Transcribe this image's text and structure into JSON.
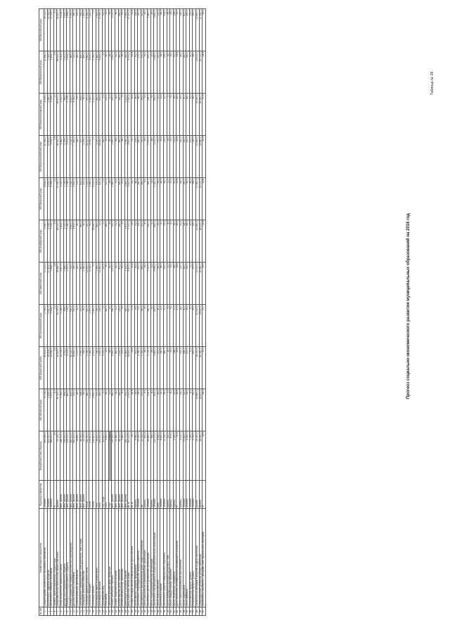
{
  "document": {
    "title": "Прогноз социально-экономического развития муниципальных образований на 2016 год",
    "corner_label": "Таблица № 29"
  },
  "table": {
    "headers": [
      "№ п/п",
      "Наименование показателя",
      "Единица измерения",
      "Республика Саха (Якутия)",
      "МО Абыйский улус",
      "МО Алданский район",
      "МО Аллаиховский улус",
      "МО Амгинский улус",
      "МО Анабарский улус",
      "МО Булунский улус",
      "МО Верхневилюйский улус",
      "МО Верхнеколымский улус",
      "МО Верхоянский улус",
      "МО Вилюйский улус"
    ],
    "rows": [
      {
        "no": "1",
        "name": "Среднегодовая численность постоянного населения",
        "unit": "человек",
        "v": [
          "963 965,0",
          "4 074,0",
          "40 813,0",
          "2 795,0",
          "17 211,0",
          "3 540,0",
          "8 432,0",
          "21 341,0",
          "4 106,0",
          "11 442,0",
          "25 113,0"
        ]
      },
      {
        "no": "2",
        "name": "Численность трудовых ресурсов",
        "unit": "человек",
        "v": [
          "612 300,0",
          "2 453,0",
          "26 504,0",
          "1 697,0",
          "10 402,0",
          "2 096,0",
          "5 470,0",
          "12 803,0",
          "2 580,0",
          "7 085,0",
          "15 052,0"
        ]
      },
      {
        "no": "3",
        "name": "Численность занятых в экономике",
        "unit": "человек",
        "v": [
          "466 400,0",
          "1 870,0",
          "22 541,0",
          "1 418,0",
          "7 856,0",
          "1 722,0",
          "4 596,0",
          "9 530,0",
          "2 116,0",
          "5 452,0",
          "11 022,0"
        ]
      },
      {
        "no": "4",
        "name": "Уровень зарегистрированной безработицы",
        "unit": "%",
        "v": [
          "1,5",
          "2,0",
          "1,3",
          "1,1",
          "1,8",
          "0,9",
          "1,2",
          "2,4",
          "1,0",
          "1,9",
          "2,1"
        ]
      },
      {
        "no": "5",
        "name": "Среднемесячная начисленная заработная плата",
        "unit": "рублей",
        "v": [
          "51 220,0",
          "47 300,0",
          "52 410,0",
          "61 050,0",
          "36 880,0",
          "68 310,0",
          "57 240,0",
          "38 150,0",
          "59 470,0",
          "46 810,0",
          "39 420,0"
        ]
      },
      {
        "no": "6",
        "name": "Фонд начисленной заработной платы",
        "unit": "млн. рублей",
        "v": [
          "286 700,0",
          "1 061,0",
          "14 176,0",
          "1 039,0",
          "3 477,0",
          "1 412,0",
          "3 157,0",
          "4 363,0",
          "1 510,0",
          "3 063,0",
          "5 214,0"
        ]
      },
      {
        "no": "7",
        "name": "Доходы консолидированного бюджета",
        "unit": "млн. рублей",
        "v": [
          "199 400,0",
          "854,0",
          "3 912,0",
          "764,0",
          "1 866,0",
          "1 021,0",
          "1 735,0",
          "2 154,0",
          "982,0",
          "1 601,0",
          "2 620,0"
        ]
      },
      {
        "no": "8",
        "name": "Расходы консолидированного бюджета",
        "unit": "млн. рублей",
        "v": [
          "205 100,0",
          "867,0",
          "4 005,0",
          "779,0",
          "1 902,0",
          "1 040,0",
          "1 768,0",
          "2 201,0",
          "1 004,0",
          "1 633,0",
          "2 684,0"
        ]
      },
      {
        "no": "9",
        "name": "Объем отгруженных товаров собственного производства",
        "unit": "млн. рублей",
        "v": [
          "890 500,0",
          "410,0",
          "40 120,0",
          "630,0",
          "720,0",
          "8 900,0",
          "2 140,0",
          "1 230,0",
          "6 810,0",
          "980,0",
          "1 520,0"
        ]
      },
      {
        "no": "10",
        "name": "Добыча полезных ископаемых",
        "unit": "млн. рублей",
        "v": [
          "620 300,0",
          "120,0",
          "36 850,0",
          "510,0",
          "140,0",
          "8 410,0",
          "1 620,0",
          "420,0",
          "6 350,0",
          "310,0",
          "640,0"
        ]
      },
      {
        "no": "11",
        "name": "Обрабатывающие производства",
        "unit": "млн. рублей",
        "v": [
          "28 450,0",
          "45,0",
          "1 210,0",
          "20,0",
          "160,0",
          "30,0",
          "110,0",
          "240,0",
          "25,0",
          "180,0",
          "230,0"
        ]
      },
      {
        "no": "12",
        "name": "Производство и распределение электроэнергии, газа и воды",
        "unit": "млн. рублей",
        "v": [
          "48 760,0",
          "245,0",
          "2 060,0",
          "100,0",
          "420,0",
          "460,0",
          "410,0",
          "570,0",
          "435,0",
          "490,0",
          "650,0"
        ]
      },
      {
        "no": "13",
        "name": "Продукция сельского хозяйства",
        "unit": "млн. рублей",
        "v": [
          "23 150,0",
          "95,0",
          "540,0",
          "60,0",
          "1 380,0",
          "40,0",
          "210,0",
          "1 760,0",
          "80,0",
          "690,0",
          "1 420,0"
        ]
      },
      {
        "no": "14",
        "name": "Поголовье крупного рогатого скота",
        "unit": "голов",
        "v": [
          "182 300,0",
          "980,0",
          "2 140,0",
          "410,0",
          "12 630,0",
          "120,0",
          "1 310,0",
          "14 210,0",
          "870,0",
          "5 960,0",
          "11 840,0"
        ]
      },
      {
        "no": "15",
        "name": "Поголовье лошадей",
        "unit": "голов",
        "v": [
          "176 200,0",
          "3 120,0",
          "1 360,0",
          "1 870,0",
          "6 140,0",
          "90,0",
          "2 980,0",
          "8 760,0",
          "2 340,0",
          "9 410,0",
          "7 630,0"
        ]
      },
      {
        "no": "16",
        "name": "Поголовье оленей",
        "unit": "голов",
        "v": [
          "155 400,0",
          "1 850,0",
          "2 910,0",
          "7 420,0",
          "0,0",
          "24 630,0",
          "9 210,0",
          "0,0",
          "3 120,0",
          "2 760,0",
          "0,0"
        ]
      },
      {
        "no": "17",
        "name": "Производство мяса (в живом весе)",
        "unit": "тонн",
        "v": [
          "34 600,0",
          "210,0",
          "240,0",
          "190,0",
          "1 960,0",
          "420,0",
          "510,0",
          "2 310,0",
          "260,0",
          "1 480,0",
          "1 820,0"
        ]
      },
      {
        "no": "18",
        "name": "Производство молока",
        "unit": "тонн",
        "v": [
          "161 800,0",
          "540,0",
          "1 820,0",
          "210,0",
          "12 430,0",
          "10,0",
          "420,0",
          "14 630,0",
          "610,0",
          "4 820,0",
          "10 260,0"
        ]
      },
      {
        "no": "19",
        "name": "Производство яиц",
        "unit": "тыс. штук",
        "v": [
          "119 400,0",
          "0,0",
          "2 310,0",
          "0,0",
          "120,0",
          "0,0",
          "0,0",
          "260,0",
          "0,0",
          "0,0",
          "310,0"
        ]
      },
      {
        "no": "20",
        "name": "Улов рыбы",
        "unit": "тонн",
        "v": [
          "3 850,0",
          "95,0",
          "12,0",
          "420,0",
          "8,0",
          "380,0",
          "510,0",
          "15,0",
          "210,0",
          "40,0",
          "35,0"
        ]
      },
      {
        "no": "21",
        "name": "Заготовка дикорастущей продукции",
        "unit": "тонн",
        "v": [
          "1 240,0",
          "12,0",
          "85,0",
          "6,0",
          "40,0",
          "4,0",
          "18,0",
          "62,0",
          "10,0",
          "28,0",
          "54,0"
        ]
      },
      {
        "no": "22",
        "name": "Оборот розничной торговли",
        "unit": "млн. рублей",
        "v": [
          "187 600,0",
          "980,0",
          "8 450,0",
          "640,0",
          "2 470,0",
          "720,0",
          "1 860,0",
          "2 890,0",
          "910,0",
          "1 630,0",
          "3 210,0"
        ]
      },
      {
        "no": "23",
        "name": "Оборот общественного питания",
        "unit": "млн. рублей",
        "v": [
          "11 480,0",
          "14,0",
          "460,0",
          "10,0",
          "62,0",
          "21,0",
          "75,0",
          "84,0",
          "18,0",
          "41,0",
          "96,0"
        ]
      },
      {
        "no": "24",
        "name": "Объем платных услуг населению",
        "unit": "млн. рублей",
        "v": [
          "56 210,0",
          "165,0",
          "2 310,0",
          "120,0",
          "470,0",
          "180,0",
          "390,0",
          "560,0",
          "150,0",
          "340,0",
          "690,0"
        ]
      },
      {
        "no": "25",
        "name": "Объем бытовых услуг населению",
        "unit": "млн. рублей",
        "v": [
          "5 380,0",
          "6,0",
          "210,0",
          "4,0",
          "41,0",
          "5,0",
          "22,0",
          "48,0",
          "7,0",
          "26,0",
          "61,0"
        ]
      },
      {
        "no": "26",
        "name": "Инвестиции в основной капитал",
        "unit": "млн. рублей",
        "v": [
          "242 700,0",
          "310,0",
          "21 460,0",
          "260,0",
          "1 120,0",
          "3 470,0",
          "2 860,0",
          "1 540,0",
          "2 210,0",
          "780,0",
          "1 960,0"
        ]
      },
      {
        "no": "27",
        "name": "Ввод в действие жилых домов",
        "unit": "кв. м",
        "v": [
          "410 200,0",
          "1 200,0",
          "14 600,0",
          "900,0",
          "8 400,0",
          "1 100,0",
          "3 200,0",
          "9 600,0",
          "1 300,0",
          "4 700,0",
          "10 300,0"
        ]
      },
      {
        "no": "28",
        "name": "Общая площадь жилых помещений на одного жителя",
        "unit": "кв. м",
        "v": [
          "22,1",
          "28,4",
          "24,6",
          "27,9",
          "22,8",
          "19,3",
          "23,7",
          "23,1",
          "26,2",
          "25,8",
          "22,4"
        ]
      },
      {
        "no": "29",
        "name": "Число малых и средних предприятий",
        "unit": "единиц",
        "v": [
          "6 940,0",
          "24,0",
          "410,0",
          "19,0",
          "92,0",
          "21,0",
          "48,0",
          "104,0",
          "26,0",
          "61,0",
          "126,0"
        ]
      },
      {
        "no": "30",
        "name": "Численность индивидуальных предпринимателей",
        "unit": "человек",
        "v": [
          "23 180,0",
          "94,0",
          "1 080,0",
          "71,0",
          "510,0",
          "62,0",
          "180,0",
          "640,0",
          "98,0",
          "370,0",
          "780,0"
        ]
      },
      {
        "no": "31",
        "name": "Протяженность автомобильных дорог общего пользования",
        "unit": "км",
        "v": [
          "27 530,0",
          "210,0",
          "1 160,0",
          "160,0",
          "640,0",
          "120,0",
          "380,0",
          "720,0",
          "190,0",
          "570,0",
          "810,0"
        ]
      },
      {
        "no": "32",
        "name": "Число дошкольных образовательных организаций",
        "unit": "единиц",
        "v": [
          "620,0",
          "5,0",
          "28,0",
          "4,0",
          "19,0",
          "4,0",
          "8,0",
          "24,0",
          "6,0",
          "15,0",
          "26,0"
        ]
      },
      {
        "no": "33",
        "name": "Численность детей в дошкольных организациях",
        "unit": "человек",
        "v": [
          "65 460,0",
          "214,0",
          "2 730,0",
          "160,0",
          "1 210,0",
          "230,0",
          "560,0",
          "1 510,0",
          "240,0",
          "810,0",
          "1 680,0"
        ]
      },
      {
        "no": "34",
        "name": "Число общеобразовательных организаций",
        "unit": "единиц",
        "v": [
          "640,0",
          "8,0",
          "26,0",
          "6,0",
          "21,0",
          "5,0",
          "13,0",
          "26,0",
          "9,0",
          "20,0",
          "29,0"
        ]
      },
      {
        "no": "35",
        "name": "Численность обучающихся в общеобразовательных организациях",
        "unit": "человек",
        "v": [
          "132 100,0",
          "602,0",
          "5 480,0",
          "410,0",
          "2 690,0",
          "620,0",
          "1 320,0",
          "3 310,0",
          "620,0",
          "1 840,0",
          "3 820,0"
        ]
      },
      {
        "no": "36",
        "name": "Число больничных коек",
        "unit": "коек",
        "v": [
          "8 940,0",
          "45,0",
          "410,0",
          "40,0",
          "140,0",
          "35,0",
          "95,0",
          "170,0",
          "50,0",
          "120,0",
          "210,0"
        ]
      },
      {
        "no": "37",
        "name": "Численность врачей",
        "unit": "человек",
        "v": [
          "4 820,0",
          "12,0",
          "160,0",
          "10,0",
          "46,0",
          "9,0",
          "28,0",
          "55,0",
          "13,0",
          "34,0",
          "68,0"
        ]
      },
      {
        "no": "38",
        "name": "Численность среднего медицинского персонала",
        "unit": "человек",
        "v": [
          "11 230,0",
          "38,0",
          "480,0",
          "31,0",
          "152,0",
          "29,0",
          "84,0",
          "176,0",
          "41,0",
          "108,0",
          "214,0"
        ]
      },
      {
        "no": "39",
        "name": "Число учреждений культурно-досугового типа",
        "unit": "единиц",
        "v": [
          "520,0",
          "7,0",
          "18,0",
          "5,0",
          "20,0",
          "4,0",
          "11,0",
          "24,0",
          "7,0",
          "18,0",
          "26,0"
        ]
      },
      {
        "no": "40",
        "name": "Число общедоступных библиотек",
        "unit": "единиц",
        "v": [
          "470,0",
          "6,0",
          "15,0",
          "5,0",
          "19,0",
          "4,0",
          "10,0",
          "22,0",
          "6,0",
          "16,0",
          "24,0"
        ]
      },
      {
        "no": "41",
        "name": "Число спортивных сооружений",
        "unit": "единиц",
        "v": [
          "3 160,0",
          "22,0",
          "148,0",
          "17,0",
          "86,0",
          "16,0",
          "41,0",
          "102,0",
          "24,0",
          "67,0",
          "118,0"
        ]
      },
      {
        "no": "42",
        "name": "Доля населения, систематически занимающегося спортом",
        "unit": "%",
        "v": [
          "30,2",
          "28,6",
          "29,4",
          "27,1",
          "34,8",
          "26,5",
          "29,9",
          "35,6",
          "28,3",
          "32,4",
          "33,7"
        ]
      },
      {
        "no": "43",
        "name": "Число зарегистрированных преступлений",
        "unit": "единиц",
        "v": [
          "9 210,0",
          "24,0",
          "610,0",
          "18,0",
          "110,0",
          "21,0",
          "64,0",
          "150,0",
          "29,0",
          "86,0",
          "190,0"
        ]
      },
      {
        "no": "44",
        "name": "Число родившихся",
        "unit": "человек",
        "v": [
          "15 420,0",
          "62,0",
          "540,0",
          "41,0",
          "260,0",
          "68,0",
          "140,0",
          "330,0",
          "60,0",
          "180,0",
          "400,0"
        ]
      },
      {
        "no": "45",
        "name": "Число умерших",
        "unit": "человек",
        "v": [
          "8 160,0",
          "54,0",
          "470,0",
          "35,0",
          "190,0",
          "36,0",
          "95,0",
          "230,0",
          "48,0",
          "140,0",
          "290,0"
        ]
      },
      {
        "no": "46",
        "name": "Естественный прирост (убыль)",
        "unit": "человек",
        "v": [
          "7 260,0",
          "8,0",
          "70,0",
          "6,0",
          "70,0",
          "32,0",
          "45,0",
          "100,0",
          "12,0",
          "40,0",
          "110,0"
        ]
      },
      {
        "no": "47",
        "name": "Миграционный прирост (убыль)",
        "unit": "человек",
        "v": [
          "-5 130,0",
          "-41,0",
          "-620,0",
          "-35,0",
          "-110,0",
          "-29,0",
          "-64,0",
          "-140,0",
          "-38,0",
          "-96,0",
          "-160,0"
        ]
      },
      {
        "no": "48",
        "name": "Прожиточный минимум в среднем на душу населения",
        "unit": "рублей",
        "v": [
          "14 180,0",
          "18 460,0",
          "14 090,0",
          "20 310,0",
          "13 210,0",
          "21 540,0",
          "17 980,0",
          "13 380,0",
          "19 240,0",
          "15 610,0",
          "13 490,0"
        ]
      },
      {
        "no": "49",
        "name": "Среднедушевые денежные доходы населения",
        "unit": "рублей",
        "v": [
          "38 260,0",
          "29 410,0",
          "40 180,0",
          "33 620,0",
          "25 940,0",
          "44 370,0",
          "35 110,0",
          "26 880,0",
          "36 540,0",
          "28 710,0",
          "27 320,0"
        ]
      },
      {
        "no": "50",
        "name": "Численность населения с доходами ниже прожиточного минимума",
        "unit": "%",
        "v": [
          "18,6",
          "24,2",
          "15,1",
          "21,7",
          "26,9",
          "13,4",
          "19,8",
          "25,4",
          "20,6",
          "24,9",
          "26,1"
        ]
      }
    ]
  }
}
